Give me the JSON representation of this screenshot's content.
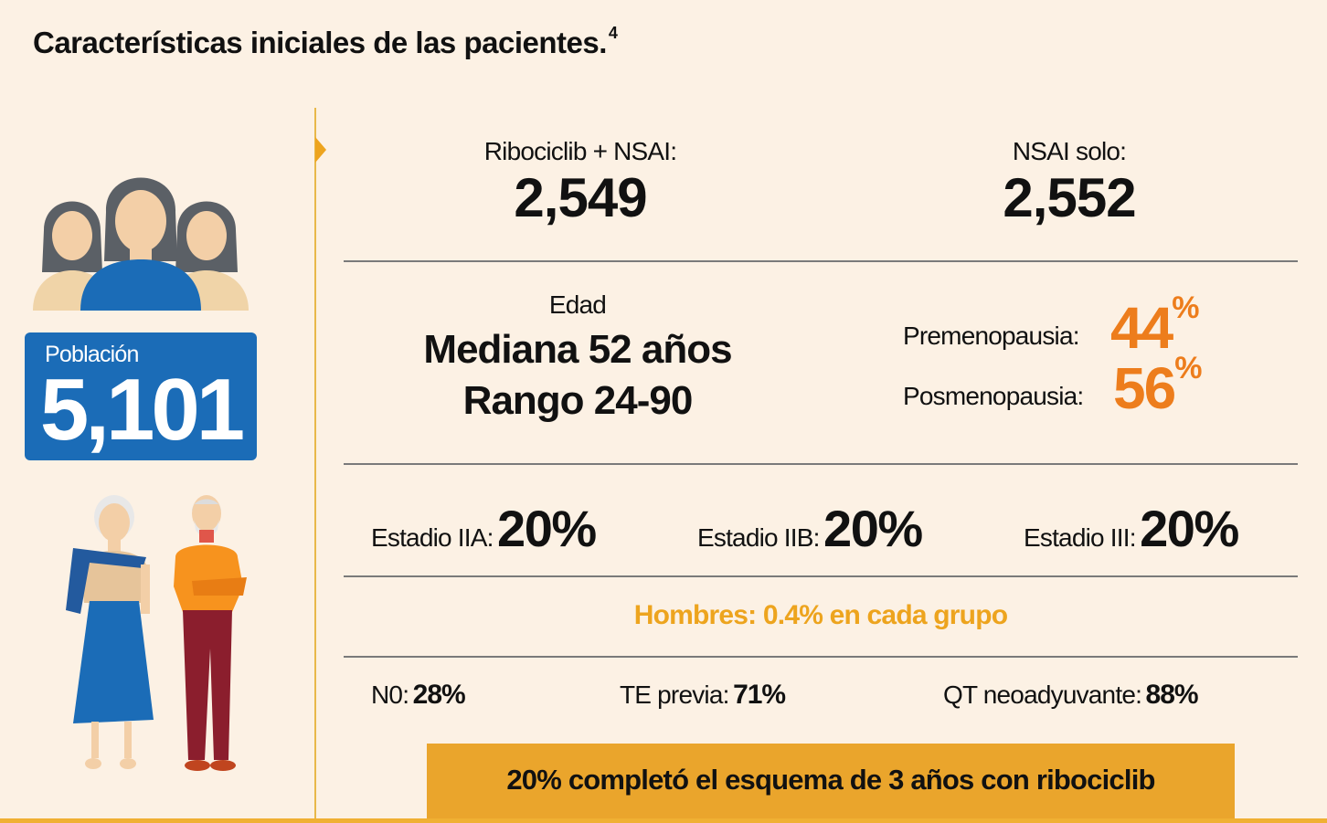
{
  "title": "Características iniciales de las pacientes.",
  "title_ref": "4",
  "population": {
    "label": "Población",
    "value": "5,101"
  },
  "arms": [
    {
      "label": "Ribociclib + NSAI:",
      "value": "2,549"
    },
    {
      "label": "NSAI solo:",
      "value": "2,552"
    }
  ],
  "age": {
    "label": "Edad",
    "median": "Mediana 52 años",
    "range": "Rango 24-90"
  },
  "menopause": [
    {
      "label": "Premenopausia:",
      "value": "44",
      "unit": "%"
    },
    {
      "label": "Posmenopausia:",
      "value": "56",
      "unit": "%"
    }
  ],
  "stages": [
    {
      "label": "Estadio IIA:",
      "value": "20%"
    },
    {
      "label": "Estadio IIB:",
      "value": "20%"
    },
    {
      "label": "Estadio III:",
      "value": "20%"
    }
  ],
  "men": "Hombres: 0.4% en cada grupo",
  "other": [
    {
      "label": "N0:",
      "value": "28%"
    },
    {
      "label": "TE previa:",
      "value": "71%"
    },
    {
      "label": "QT neoadyuvante:",
      "value": "88%"
    }
  ],
  "footer": "20% completó el esquema de 3 años con ribociclib",
  "colors": {
    "background": "#fcf1e4",
    "accent_yellow": "#eda41e",
    "accent_orange": "#ed7d1c",
    "population_blue": "#1b6cb7"
  },
  "icons": [
    "women-group-icon",
    "elderly-woman-icon",
    "elderly-man-icon"
  ]
}
